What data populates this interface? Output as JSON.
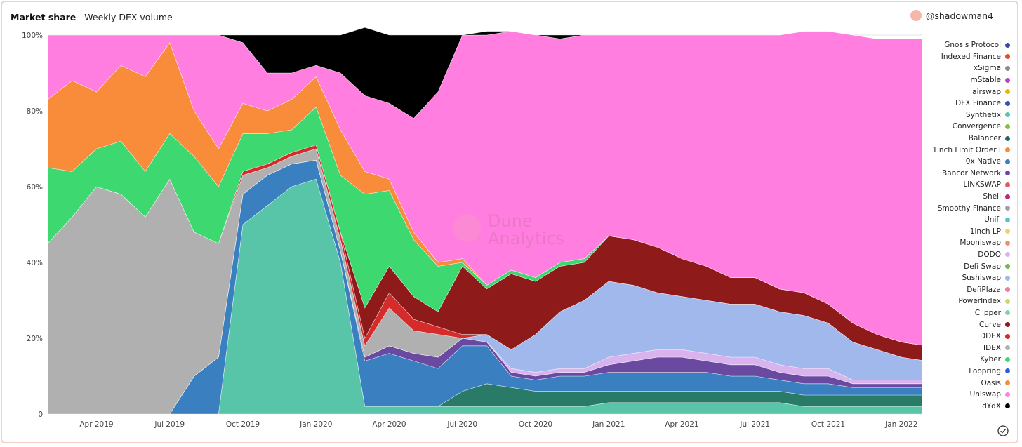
{
  "header": {
    "title": "Market share",
    "subtitle": "Weekly DEX volume",
    "user": "@shadowman4"
  },
  "watermark": {
    "line1": "Dune",
    "line2": "Analytics"
  },
  "icons": {
    "check": "check-circle-icon",
    "avatar": "avatar-icon"
  },
  "chart_data": {
    "type": "area",
    "stacked": "percent",
    "xlabel": "",
    "ylabel": "",
    "x_ticks": [
      "Apr 2019",
      "Jul 2019",
      "Oct 2019",
      "Jan 2020",
      "Apr 2020",
      "Jul 2020",
      "Oct 2020",
      "Jan 2021",
      "Apr 2021",
      "Jul 2021",
      "Oct 2021",
      "Jan 2022"
    ],
    "y_ticks": [
      "0",
      "20%",
      "40%",
      "60%",
      "80%",
      "100%"
    ],
    "ylim": [
      0,
      100
    ],
    "grid": true,
    "legend_position": "right",
    "x": [
      "Feb 2019",
      "Mar 2019",
      "Apr 2019",
      "May 2019",
      "Jun 2019",
      "Jul 2019",
      "Aug 2019",
      "Sep 2019",
      "Oct 2019",
      "Nov 2019",
      "Dec 2019",
      "Jan 2020",
      "Feb 2020",
      "Mar 2020",
      "Apr 2020",
      "May 2020",
      "Jun 2020",
      "Jul 2020",
      "Aug 2020",
      "Sep 2020",
      "Oct 2020",
      "Nov 2020",
      "Dec 2020",
      "Jan 2021",
      "Feb 2021",
      "Mar 2021",
      "Apr 2021",
      "May 2021",
      "Jun 2021",
      "Jul 2021",
      "Aug 2021",
      "Sep 2021",
      "Oct 2021",
      "Nov 2021",
      "Dec 2021",
      "Jan 2022",
      "Feb 2022"
    ],
    "series": [
      {
        "name": "Uniswap",
        "color": "#58c4a8",
        "values": [
          0,
          0,
          0,
          0,
          0,
          0,
          0,
          0,
          50,
          55,
          60,
          62,
          40,
          2,
          2,
          2,
          2,
          2,
          2,
          2,
          2,
          2,
          2,
          3,
          3,
          3,
          3,
          3,
          3,
          3,
          3,
          2,
          2,
          2,
          2,
          2,
          2
        ]
      },
      {
        "name": "Curve",
        "color": "#2a7a68",
        "values": [
          0,
          0,
          0,
          0,
          0,
          0,
          0,
          0,
          0,
          0,
          0,
          0,
          0,
          0,
          0,
          0,
          0,
          4,
          6,
          5,
          4,
          4,
          4,
          3,
          3,
          3,
          3,
          3,
          3,
          3,
          3,
          3,
          3,
          3,
          3,
          3,
          3
        ]
      },
      {
        "name": "Loopring",
        "color": "#3a7fc0",
        "values": [
          0,
          0,
          0,
          0,
          0,
          0,
          10,
          15,
          8,
          8,
          6,
          5,
          3,
          12,
          14,
          12,
          10,
          12,
          10,
          3,
          3,
          4,
          4,
          5,
          5,
          5,
          5,
          5,
          4,
          4,
          3,
          3,
          3,
          2,
          2,
          2,
          2
        ]
      },
      {
        "name": "Bancor Network",
        "color": "#6a4aa0",
        "values": [
          0,
          0,
          0,
          0,
          0,
          0,
          0,
          0,
          0,
          0,
          0,
          0,
          0,
          1,
          2,
          2,
          3,
          2,
          1,
          1,
          1,
          1,
          1,
          2,
          3,
          4,
          4,
          3,
          3,
          3,
          2,
          2,
          2,
          1,
          1,
          1,
          1
        ]
      },
      {
        "name": "Balancer",
        "color": "#d9b3ee",
        "values": [
          0,
          0,
          0,
          0,
          0,
          0,
          0,
          0,
          0,
          0,
          0,
          0,
          0,
          0,
          0,
          0,
          0,
          0,
          0,
          1,
          1,
          1,
          1,
          2,
          2,
          2,
          2,
          2,
          2,
          2,
          2,
          2,
          2,
          1,
          1,
          1,
          1
        ]
      },
      {
        "name": "Sushiswap",
        "color": "#a0b8ec",
        "values": [
          0,
          0,
          0,
          0,
          0,
          0,
          0,
          0,
          0,
          0,
          0,
          0,
          0,
          0,
          0,
          0,
          0,
          0,
          2,
          5,
          10,
          15,
          18,
          20,
          18,
          15,
          14,
          14,
          14,
          14,
          14,
          14,
          12,
          10,
          8,
          6,
          5
        ]
      },
      {
        "name": "IDEX",
        "color": "#b0b0b0",
        "values": [
          45,
          52,
          60,
          58,
          52,
          62,
          38,
          30,
          5,
          2,
          2,
          3,
          3,
          3,
          10,
          6,
          6,
          0,
          0,
          0,
          0,
          0,
          0,
          0,
          0,
          0,
          0,
          0,
          0,
          0,
          0,
          0,
          0,
          0,
          0,
          0,
          0
        ]
      },
      {
        "name": "DDEX",
        "color": "#d62b2b",
        "values": [
          0,
          0,
          0,
          0,
          0,
          0,
          0,
          0,
          1,
          1,
          1,
          1,
          2,
          2,
          4,
          3,
          2,
          1,
          0,
          0,
          0,
          0,
          0,
          0,
          0,
          0,
          0,
          0,
          0,
          0,
          0,
          0,
          0,
          0,
          0,
          0,
          0
        ]
      },
      {
        "name": "dYdX",
        "color": "#8e1a1a",
        "values": [
          0,
          0,
          0,
          0,
          0,
          0,
          0,
          0,
          0,
          0,
          0,
          0,
          0,
          8,
          7,
          6,
          4,
          18,
          12,
          20,
          14,
          12,
          10,
          12,
          12,
          12,
          10,
          9,
          7,
          7,
          6,
          6,
          5,
          5,
          4,
          4,
          4
        ]
      },
      {
        "name": "Kyber",
        "color": "#3dd870",
        "values": [
          20,
          12,
          10,
          14,
          12,
          12,
          20,
          15,
          10,
          8,
          6,
          10,
          15,
          30,
          20,
          15,
          12,
          1,
          1,
          1,
          1,
          1,
          1,
          0,
          0,
          0,
          0,
          0,
          0,
          0,
          0,
          0,
          0,
          0,
          0,
          0,
          0
        ]
      },
      {
        "name": "Oasis",
        "color": "#f98c3b",
        "values": [
          18,
          24,
          15,
          20,
          25,
          24,
          12,
          10,
          8,
          6,
          8,
          8,
          12,
          6,
          3,
          2,
          1,
          1,
          0,
          0,
          0,
          0,
          0,
          0,
          0,
          0,
          0,
          0,
          0,
          0,
          0,
          0,
          0,
          0,
          0,
          0,
          0
        ]
      },
      {
        "name": "Uniswap",
        "color": "#ff7ee0",
        "values": [
          17,
          12,
          15,
          8,
          11,
          2,
          20,
          30,
          16,
          10,
          7,
          3,
          15,
          20,
          20,
          30,
          45,
          59,
          66,
          63,
          64,
          59,
          59,
          53,
          54,
          56,
          59,
          61,
          64,
          64,
          67,
          69,
          72,
          76,
          78,
          80,
          81
        ]
      },
      {
        "name": "0x Native",
        "color": "#000000",
        "values": [
          0,
          0,
          0,
          0,
          0,
          0,
          0,
          0,
          2,
          10,
          10,
          8,
          10,
          18,
          18,
          22,
          15,
          0,
          1,
          0,
          0,
          1,
          0,
          0,
          0,
          0,
          0,
          0,
          0,
          0,
          0,
          0,
          0,
          0,
          0,
          0,
          0
        ]
      }
    ]
  },
  "legend": [
    {
      "label": "Gnosis Protocol",
      "color": "#3b4a9c"
    },
    {
      "label": "Indexed Finance",
      "color": "#e2502b"
    },
    {
      "label": "xSigma",
      "color": "#8a8a8a"
    },
    {
      "label": "mStable",
      "color": "#c23dc2"
    },
    {
      "label": "airswap",
      "color": "#e5b800"
    },
    {
      "label": "DFX Finance",
      "color": "#3b4fae"
    },
    {
      "label": "Synthetix",
      "color": "#58c4a8"
    },
    {
      "label": "Convergence",
      "color": "#86c038"
    },
    {
      "label": "Balancer",
      "color": "#1f6b5f"
    },
    {
      "label": "1inch Limit Order I",
      "color": "#f98c3b"
    },
    {
      "label": "0x Native",
      "color": "#3a7fc0"
    },
    {
      "label": "Bancor Network",
      "color": "#6a4aa0"
    },
    {
      "label": "LINKSWAP",
      "color": "#e35a5a"
    },
    {
      "label": "Shell",
      "color": "#c0287a"
    },
    {
      "label": "Smoothy Finance",
      "color": "#a0a0a0"
    },
    {
      "label": "Unifi",
      "color": "#58c4c4"
    },
    {
      "label": "1inch LP",
      "color": "#f2d070"
    },
    {
      "label": "Mooniswap",
      "color": "#f0906a"
    },
    {
      "label": "DODO",
      "color": "#d9b3ee"
    },
    {
      "label": "Defi Swap",
      "color": "#76b84a"
    },
    {
      "label": "Sushiswap",
      "color": "#a0b8ec"
    },
    {
      "label": "DefiPlaza",
      "color": "#ee7fa0"
    },
    {
      "label": "PowerIndex",
      "color": "#c8d870"
    },
    {
      "label": "Clipper",
      "color": "#7ed6a0"
    },
    {
      "label": "Curve",
      "color": "#8e1a1a"
    },
    {
      "label": "DDEX",
      "color": "#d62b2b"
    },
    {
      "label": "IDEX",
      "color": "#b0b0b0"
    },
    {
      "label": "Kyber",
      "color": "#3dd870"
    },
    {
      "label": "Loopring",
      "color": "#2f5fd8"
    },
    {
      "label": "Oasis",
      "color": "#f98c3b"
    },
    {
      "label": "Uniswap",
      "color": "#ff7ee0"
    },
    {
      "label": "dYdX",
      "color": "#000000"
    }
  ]
}
